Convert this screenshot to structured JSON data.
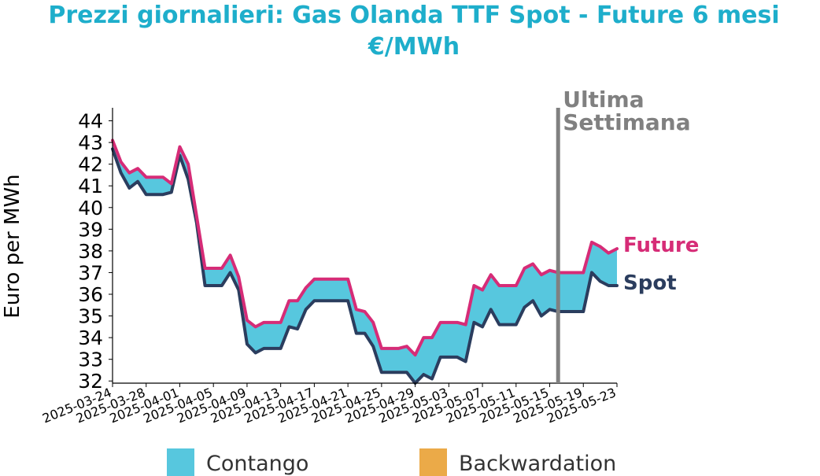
{
  "chart_data": {
    "type": "area",
    "title_lines": [
      "Prezzi giornalieri: Gas Olanda TTF Spot - Future 6 mesi",
      "€/MWh"
    ],
    "ylabel": "Euro per MWh",
    "xlabel": "",
    "ylim": [
      31.9,
      44.6
    ],
    "yticks": [
      32,
      33,
      34,
      35,
      36,
      37,
      38,
      39,
      40,
      41,
      42,
      43,
      44
    ],
    "xrange": [
      "2025-03-24",
      "2025-05-23"
    ],
    "xticks": [
      "2025-03-24",
      "2025-03-28",
      "2025-04-01",
      "2025-04-05",
      "2025-04-09",
      "2025-04-13",
      "2025-04-17",
      "2025-04-21",
      "2025-04-25",
      "2025-04-29",
      "2025-05-03",
      "2025-05-07",
      "2025-05-11",
      "2025-05-15",
      "2025-05-19",
      "2025-05-23"
    ],
    "grid": false,
    "series": [
      {
        "name": "Future",
        "color": "#d62c77",
        "points": [
          [
            "2025-03-24",
            43.1
          ],
          [
            "2025-03-25",
            42.1
          ],
          [
            "2025-03-26",
            41.6
          ],
          [
            "2025-03-27",
            41.8
          ],
          [
            "2025-03-28",
            41.4
          ],
          [
            "2025-03-29",
            41.4
          ],
          [
            "2025-03-30",
            41.4
          ],
          [
            "2025-03-31",
            41.1
          ],
          [
            "2025-04-01",
            42.8
          ],
          [
            "2025-04-02",
            42.0
          ],
          [
            "2025-04-03",
            39.6
          ],
          [
            "2025-04-04",
            37.2
          ],
          [
            "2025-04-05",
            37.2
          ],
          [
            "2025-04-06",
            37.2
          ],
          [
            "2025-04-07",
            37.8
          ],
          [
            "2025-04-08",
            36.8
          ],
          [
            "2025-04-09",
            34.8
          ],
          [
            "2025-04-10",
            34.5
          ],
          [
            "2025-04-11",
            34.7
          ],
          [
            "2025-04-12",
            34.7
          ],
          [
            "2025-04-13",
            34.7
          ],
          [
            "2025-04-14",
            35.7
          ],
          [
            "2025-04-15",
            35.7
          ],
          [
            "2025-04-16",
            36.3
          ],
          [
            "2025-04-17",
            36.7
          ],
          [
            "2025-04-18",
            36.7
          ],
          [
            "2025-04-19",
            36.7
          ],
          [
            "2025-04-20",
            36.7
          ],
          [
            "2025-04-21",
            36.7
          ],
          [
            "2025-04-22",
            35.3
          ],
          [
            "2025-04-23",
            35.2
          ],
          [
            "2025-04-24",
            34.7
          ],
          [
            "2025-04-25",
            33.5
          ],
          [
            "2025-04-26",
            33.5
          ],
          [
            "2025-04-27",
            33.5
          ],
          [
            "2025-04-28",
            33.6
          ],
          [
            "2025-04-29",
            33.2
          ],
          [
            "2025-04-30",
            34.0
          ],
          [
            "2025-05-01",
            34.0
          ],
          [
            "2025-05-02",
            34.7
          ],
          [
            "2025-05-03",
            34.7
          ],
          [
            "2025-05-04",
            34.7
          ],
          [
            "2025-05-05",
            34.6
          ],
          [
            "2025-05-06",
            36.4
          ],
          [
            "2025-05-07",
            36.2
          ],
          [
            "2025-05-08",
            36.9
          ],
          [
            "2025-05-09",
            36.4
          ],
          [
            "2025-05-10",
            36.4
          ],
          [
            "2025-05-11",
            36.4
          ],
          [
            "2025-05-12",
            37.2
          ],
          [
            "2025-05-13",
            37.4
          ],
          [
            "2025-05-14",
            36.9
          ],
          [
            "2025-05-15",
            37.1
          ],
          [
            "2025-05-16",
            37.0
          ],
          [
            "2025-05-17",
            37.0
          ],
          [
            "2025-05-18",
            37.0
          ],
          [
            "2025-05-19",
            37.0
          ],
          [
            "2025-05-20",
            38.4
          ],
          [
            "2025-05-21",
            38.2
          ],
          [
            "2025-05-22",
            37.9
          ],
          [
            "2025-05-23",
            38.1
          ]
        ]
      },
      {
        "name": "Spot",
        "color": "#2b3d5e",
        "points": [
          [
            "2025-03-24",
            42.7
          ],
          [
            "2025-03-25",
            41.6
          ],
          [
            "2025-03-26",
            40.9
          ],
          [
            "2025-03-27",
            41.2
          ],
          [
            "2025-03-28",
            40.6
          ],
          [
            "2025-03-29",
            40.6
          ],
          [
            "2025-03-30",
            40.6
          ],
          [
            "2025-03-31",
            40.7
          ],
          [
            "2025-04-01",
            42.4
          ],
          [
            "2025-04-02",
            41.3
          ],
          [
            "2025-04-03",
            39.3
          ],
          [
            "2025-04-04",
            36.4
          ],
          [
            "2025-04-05",
            36.4
          ],
          [
            "2025-04-06",
            36.4
          ],
          [
            "2025-04-07",
            37.0
          ],
          [
            "2025-04-08",
            36.2
          ],
          [
            "2025-04-09",
            33.7
          ],
          [
            "2025-04-10",
            33.3
          ],
          [
            "2025-04-11",
            33.5
          ],
          [
            "2025-04-12",
            33.5
          ],
          [
            "2025-04-13",
            33.5
          ],
          [
            "2025-04-14",
            34.5
          ],
          [
            "2025-04-15",
            34.4
          ],
          [
            "2025-04-16",
            35.3
          ],
          [
            "2025-04-17",
            35.7
          ],
          [
            "2025-04-18",
            35.7
          ],
          [
            "2025-04-19",
            35.7
          ],
          [
            "2025-04-20",
            35.7
          ],
          [
            "2025-04-21",
            35.7
          ],
          [
            "2025-04-22",
            34.2
          ],
          [
            "2025-04-23",
            34.2
          ],
          [
            "2025-04-24",
            33.6
          ],
          [
            "2025-04-25",
            32.4
          ],
          [
            "2025-04-26",
            32.4
          ],
          [
            "2025-04-27",
            32.4
          ],
          [
            "2025-04-28",
            32.4
          ],
          [
            "2025-04-29",
            31.9
          ],
          [
            "2025-04-30",
            32.3
          ],
          [
            "2025-05-01",
            32.1
          ],
          [
            "2025-05-02",
            33.1
          ],
          [
            "2025-05-03",
            33.1
          ],
          [
            "2025-05-04",
            33.1
          ],
          [
            "2025-05-05",
            32.9
          ],
          [
            "2025-05-06",
            34.7
          ],
          [
            "2025-05-07",
            34.5
          ],
          [
            "2025-05-08",
            35.3
          ],
          [
            "2025-05-09",
            34.6
          ],
          [
            "2025-05-10",
            34.6
          ],
          [
            "2025-05-11",
            34.6
          ],
          [
            "2025-05-12",
            35.4
          ],
          [
            "2025-05-13",
            35.7
          ],
          [
            "2025-05-14",
            35.0
          ],
          [
            "2025-05-15",
            35.3
          ],
          [
            "2025-05-16",
            35.2
          ],
          [
            "2025-05-17",
            35.2
          ],
          [
            "2025-05-18",
            35.2
          ],
          [
            "2025-05-19",
            35.2
          ],
          [
            "2025-05-20",
            37.0
          ],
          [
            "2025-05-21",
            36.6
          ],
          [
            "2025-05-22",
            36.4
          ],
          [
            "2025-05-23",
            36.4
          ]
        ]
      }
    ],
    "fill_colors": {
      "contango": "#57c7de",
      "backwardation": "#ebaa48"
    },
    "vertical_marker": {
      "date": "2025-05-16",
      "label_lines": [
        "Ultima",
        "Settimana"
      ],
      "color": "#808080"
    },
    "legend": {
      "placement": "bottom",
      "items": [
        {
          "label": "Contango",
          "color": "#57c7de"
        },
        {
          "label": "Backwardation",
          "color": "#ebaa48"
        }
      ]
    }
  }
}
